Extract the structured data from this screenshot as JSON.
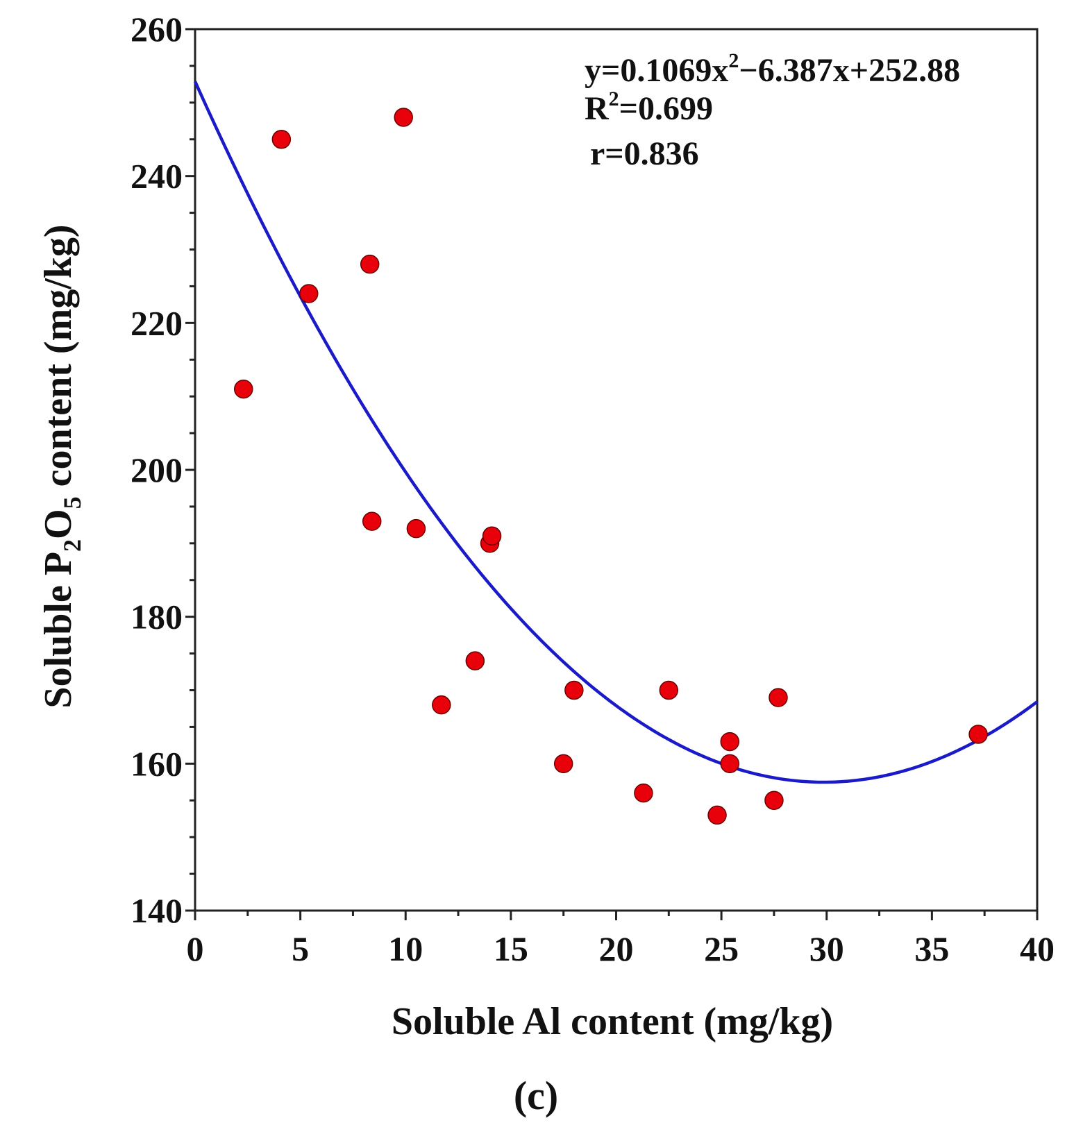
{
  "chart_data": {
    "type": "scatter",
    "xlabel": "Soluble Al content (mg/kg)",
    "ylabel": {
      "prefix": "Soluble P",
      "sub1": "2",
      "mid": "O",
      "sub2": "5",
      "suffix": " content (mg/kg)"
    },
    "xlim": [
      0,
      40
    ],
    "ylim": [
      140,
      260
    ],
    "x_ticks": [
      "0",
      "5",
      "10",
      "15",
      "20",
      "25",
      "30",
      "35",
      "40"
    ],
    "x_tick_values": [
      0,
      5,
      10,
      15,
      20,
      25,
      30,
      35,
      40
    ],
    "y_ticks": [
      "140",
      "160",
      "180",
      "200",
      "220",
      "240",
      "260"
    ],
    "y_tick_values": [
      140,
      160,
      180,
      200,
      220,
      240,
      260
    ],
    "grid": false,
    "points": [
      {
        "x": 2.3,
        "y": 211
      },
      {
        "x": 4.1,
        "y": 245
      },
      {
        "x": 5.4,
        "y": 224
      },
      {
        "x": 8.3,
        "y": 228
      },
      {
        "x": 8.4,
        "y": 193
      },
      {
        "x": 9.9,
        "y": 248
      },
      {
        "x": 10.5,
        "y": 192
      },
      {
        "x": 11.7,
        "y": 168
      },
      {
        "x": 13.3,
        "y": 174
      },
      {
        "x": 14.0,
        "y": 190
      },
      {
        "x": 14.1,
        "y": 191
      },
      {
        "x": 17.5,
        "y": 160
      },
      {
        "x": 18.0,
        "y": 170
      },
      {
        "x": 21.3,
        "y": 156
      },
      {
        "x": 22.5,
        "y": 170
      },
      {
        "x": 24.8,
        "y": 153
      },
      {
        "x": 25.4,
        "y": 163
      },
      {
        "x": 25.4,
        "y": 160
      },
      {
        "x": 27.5,
        "y": 155
      },
      {
        "x": 27.7,
        "y": 169
      },
      {
        "x": 37.2,
        "y": 164
      }
    ],
    "fit": {
      "type": "quadratic",
      "a": 0.1069,
      "b": -6.387,
      "c": 252.88,
      "x_range": [
        0,
        40
      ]
    },
    "annotations": {
      "equation_prefix": "y=0.1069x",
      "equation_sup": "2",
      "equation_suffix": "−6.387x+252.88",
      "r2_prefix": "R",
      "r2_sup": "2",
      "r2_suffix": "=0.699",
      "r": "r=0.836"
    },
    "caption": "(c)",
    "colors": {
      "point_fill": "#e8000b",
      "point_stroke": "#6a0000",
      "fit_line": "#1a1ac8",
      "axis": "#222222"
    }
  }
}
